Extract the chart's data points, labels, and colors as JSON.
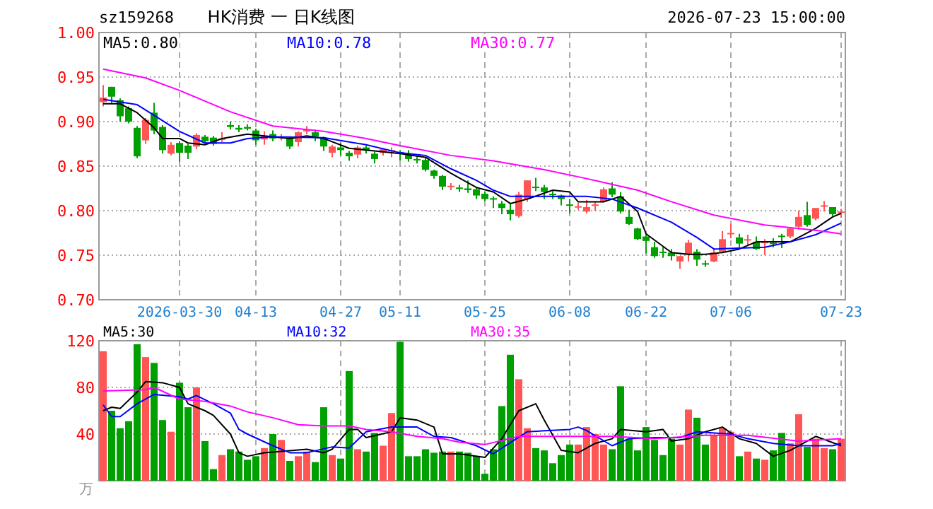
{
  "chart_data": [
    {
      "type": "candlestick",
      "title": "HK消费 一 日K线图",
      "subtitle": "sz159268",
      "annotations": [
        "2026-07-23 15:00:00"
      ],
      "categories": [
        null,
        null,
        null,
        null,
        null,
        null,
        null,
        null,
        null,
        "2026-03-30",
        null,
        null,
        null,
        null,
        null,
        null,
        null,
        null,
        "04-13",
        null,
        null,
        null,
        null,
        null,
        null,
        null,
        null,
        null,
        "04-27",
        null,
        null,
        null,
        null,
        null,
        null,
        "05-11",
        null,
        null,
        null,
        null,
        null,
        null,
        null,
        null,
        null,
        "05-25",
        null,
        null,
        null,
        null,
        null,
        null,
        null,
        null,
        null,
        "06-08",
        null,
        null,
        null,
        null,
        null,
        null,
        null,
        null,
        "06-22",
        null,
        null,
        null,
        null,
        null,
        null,
        null,
        null,
        null,
        "07-06",
        null,
        null,
        null,
        null,
        null,
        null,
        null,
        null,
        null,
        null,
        null,
        null,
        "07-23"
      ],
      "ohlc": [
        [
          0.922,
          0.941,
          0.917,
          0.927
        ],
        [
          0.939,
          0.939,
          0.92,
          0.928
        ],
        [
          0.924,
          0.926,
          0.9,
          0.906
        ],
        [
          0.915,
          0.917,
          0.898,
          0.9
        ],
        [
          0.893,
          0.895,
          0.859,
          0.861
        ],
        [
          0.879,
          0.904,
          0.875,
          0.902
        ],
        [
          0.91,
          0.921,
          0.886,
          0.89
        ],
        [
          0.894,
          0.896,
          0.864,
          0.868
        ],
        [
          0.864,
          0.877,
          0.862,
          0.874
        ],
        [
          0.876,
          0.878,
          0.855,
          0.865
        ],
        [
          0.873,
          0.875,
          0.858,
          0.865
        ],
        [
          0.872,
          0.887,
          0.869,
          0.885
        ],
        [
          0.883,
          0.885,
          0.876,
          0.878
        ],
        [
          0.882,
          0.884,
          0.873,
          0.875
        ],
        [
          0.88,
          0.888,
          0.877,
          0.881
        ],
        [
          0.896,
          0.9,
          0.891,
          0.894
        ],
        [
          0.893,
          0.896,
          0.888,
          0.891
        ],
        [
          0.894,
          0.897,
          0.89,
          0.892
        ],
        [
          0.89,
          0.892,
          0.874,
          0.879
        ],
        [
          0.88,
          0.889,
          0.874,
          0.884
        ],
        [
          0.886,
          0.89,
          0.878,
          0.881
        ],
        [
          0.882,
          0.886,
          0.879,
          0.883
        ],
        [
          0.881,
          0.883,
          0.869,
          0.872
        ],
        [
          0.877,
          0.889,
          0.872,
          0.888
        ],
        [
          0.889,
          0.895,
          0.886,
          0.891
        ],
        [
          0.888,
          0.891,
          0.878,
          0.883
        ],
        [
          0.881,
          0.883,
          0.867,
          0.872
        ],
        [
          0.865,
          0.874,
          0.86,
          0.872
        ],
        [
          0.871,
          0.876,
          0.862,
          0.868
        ],
        [
          0.865,
          0.867,
          0.856,
          0.861
        ],
        [
          0.863,
          0.873,
          0.859,
          0.871
        ],
        [
          0.871,
          0.873,
          0.864,
          0.868
        ],
        [
          0.864,
          0.866,
          0.853,
          0.858
        ],
        [
          0.865,
          0.87,
          0.862,
          0.869
        ],
        [
          0.867,
          0.871,
          0.86,
          0.868
        ],
        [
          0.866,
          0.868,
          0.856,
          0.865
        ],
        [
          0.864,
          0.868,
          0.855,
          0.858
        ],
        [
          0.858,
          0.862,
          0.853,
          0.857
        ],
        [
          0.857,
          0.86,
          0.844,
          0.846
        ],
        [
          0.845,
          0.846,
          0.836,
          0.839
        ],
        [
          0.839,
          0.84,
          0.823,
          0.827
        ],
        [
          0.827,
          0.831,
          0.823,
          0.828
        ],
        [
          0.826,
          0.829,
          0.821,
          0.825
        ],
        [
          0.825,
          0.834,
          0.82,
          0.823
        ],
        [
          0.824,
          0.826,
          0.813,
          0.817
        ],
        [
          0.819,
          0.821,
          0.811,
          0.813
        ],
        [
          0.814,
          0.816,
          0.803,
          0.813
        ],
        [
          0.808,
          0.811,
          0.796,
          0.803
        ],
        [
          0.801,
          0.808,
          0.789,
          0.796
        ],
        [
          0.794,
          0.821,
          0.792,
          0.818
        ],
        [
          0.813,
          0.834,
          0.81,
          0.834
        ],
        [
          0.827,
          0.837,
          0.822,
          0.826
        ],
        [
          0.826,
          0.829,
          0.813,
          0.821
        ],
        [
          0.819,
          0.822,
          0.813,
          0.818
        ],
        [
          0.817,
          0.818,
          0.806,
          0.813
        ],
        [
          0.807,
          0.813,
          0.797,
          0.806
        ],
        [
          0.804,
          0.809,
          0.801,
          0.805
        ],
        [
          0.799,
          0.812,
          0.797,
          0.804
        ],
        [
          0.806,
          0.81,
          0.8,
          0.807
        ],
        [
          0.81,
          0.826,
          0.809,
          0.824
        ],
        [
          0.825,
          0.832,
          0.815,
          0.818
        ],
        [
          0.816,
          0.821,
          0.797,
          0.799
        ],
        [
          0.793,
          0.801,
          0.784,
          0.785
        ],
        [
          0.78,
          0.781,
          0.767,
          0.768
        ],
        [
          0.771,
          0.774,
          0.752,
          0.766
        ],
        [
          0.759,
          0.765,
          0.747,
          0.749
        ],
        [
          0.754,
          0.759,
          0.747,
          0.753
        ],
        [
          0.753,
          0.757,
          0.744,
          0.749
        ],
        [
          0.743,
          0.749,
          0.735,
          0.749
        ],
        [
          0.751,
          0.767,
          0.743,
          0.764
        ],
        [
          0.754,
          0.757,
          0.738,
          0.745
        ],
        [
          0.741,
          0.744,
          0.737,
          0.74
        ],
        [
          0.743,
          0.757,
          0.742,
          0.753
        ],
        [
          0.754,
          0.777,
          0.753,
          0.768
        ],
        [
          0.774,
          0.785,
          0.769,
          0.775
        ],
        [
          0.77,
          0.774,
          0.759,
          0.763
        ],
        [
          0.767,
          0.773,
          0.761,
          0.768
        ],
        [
          0.765,
          0.771,
          0.756,
          0.757
        ],
        [
          0.764,
          0.768,
          0.75,
          0.765
        ],
        [
          0.764,
          0.769,
          0.759,
          0.763
        ],
        [
          0.772,
          0.774,
          0.758,
          0.771
        ],
        [
          0.771,
          0.781,
          0.769,
          0.78
        ],
        [
          0.782,
          0.8,
          0.779,
          0.793
        ],
        [
          0.795,
          0.81,
          0.782,
          0.784
        ],
        [
          0.791,
          0.803,
          0.789,
          0.803
        ],
        [
          0.805,
          0.811,
          0.799,
          0.806
        ],
        [
          0.804,
          0.804,
          0.794,
          0.796
        ],
        [
          0.798,
          0.802,
          0.792,
          0.799
        ]
      ],
      "colors": [
        "#ff5555",
        "#00a000",
        "#00a000",
        "#00a000",
        "#00a000",
        "#ff5555",
        "#00a000",
        "#00a000",
        "#ff5555",
        "#00a000",
        "#00a000",
        "#ff5555",
        "#00a000",
        "#00a000",
        "#ff5555",
        "#00a000",
        "#00a000",
        "#00a000",
        "#00a000",
        "#ff5555",
        "#00a000",
        "#ff5555",
        "#00a000",
        "#ff5555",
        "#ff5555",
        "#00a000",
        "#00a000",
        "#ff5555",
        "#00a000",
        "#00a000",
        "#ff5555",
        "#00a000",
        "#00a000",
        "#ff5555",
        "#ff5555",
        "#00a000",
        "#00a000",
        "#00a000",
        "#00a000",
        "#00a000",
        "#00a000",
        "#ff5555",
        "#00a000",
        "#00a000",
        "#00a000",
        "#00a000",
        "#00a000",
        "#00a000",
        "#00a000",
        "#ff5555",
        "#ff5555",
        "#00a000",
        "#00a000",
        "#00a000",
        "#00a000",
        "#00a000",
        "#ff5555",
        "#ff5555",
        "#ff5555",
        "#ff5555",
        "#00a000",
        "#00a000",
        "#00a000",
        "#00a000",
        "#00a000",
        "#00a000",
        "#00a000",
        "#00a000",
        "#ff5555",
        "#ff5555",
        "#00a000",
        "#00a000",
        "#ff5555",
        "#ff5555",
        "#ff5555",
        "#00a000",
        "#ff5555",
        "#00a000",
        "#ff5555",
        "#00a000",
        "#00a000",
        "#ff5555",
        "#ff5555",
        "#00a000",
        "#ff5555",
        "#ff5555",
        "#00a000",
        "#ff5555"
      ],
      "series": [
        {
          "name": "MA5:0.80",
          "type": "line",
          "color": "#000000",
          "values": [
            0.92,
            null,
            0.92,
            null,
            0.91,
            null,
            0.893,
            0.881,
            null,
            0.881,
            0.876,
            null,
            0.874,
            null,
            0.881,
            null,
            null,
            0.886,
            null,
            null,
            0.883,
            null,
            0.881,
            null,
            0.884,
            null,
            0.881,
            null,
            null,
            0.87,
            null,
            0.868,
            null,
            null,
            null,
            0.864,
            null,
            null,
            0.86,
            null,
            null,
            0.842,
            null,
            null,
            0.826,
            null,
            0.821,
            null,
            0.808,
            null,
            0.813,
            null,
            null,
            0.823,
            null,
            0.821,
            0.81,
            null,
            null,
            0.81,
            null,
            0.816,
            null,
            0.799,
            0.774,
            null,
            null,
            0.753,
            null,
            0.751,
            null,
            0.751,
            null,
            0.753,
            null,
            0.757,
            null,
            0.765,
            null,
            null,
            null,
            0.765,
            null,
            null,
            0.78,
            null,
            0.793,
            0.797
          ]
        },
        {
          "name": "MA10:0.78",
          "type": "line",
          "color": "#0000ff",
          "values": [
            0.925,
            null,
            null,
            null,
            0.919,
            null,
            0.907,
            null,
            null,
            0.889,
            null,
            null,
            0.876,
            null,
            null,
            0.876,
            null,
            0.881,
            null,
            null,
            0.883,
            null,
            null,
            null,
            null,
            null,
            0.882,
            null,
            null,
            null,
            null,
            0.874,
            null,
            null,
            null,
            0.865,
            null,
            null,
            0.862,
            null,
            null,
            0.847,
            null,
            null,
            0.834,
            null,
            0.823,
            null,
            0.816,
            null,
            null,
            null,
            0.816,
            null,
            null,
            null,
            null,
            0.816,
            null,
            null,
            0.813,
            null,
            null,
            0.803,
            null,
            null,
            null,
            0.787,
            null,
            null,
            0.77,
            null,
            0.757,
            null,
            null,
            null,
            null,
            null,
            0.759,
            null,
            null,
            0.765,
            null,
            null,
            0.773,
            null,
            null,
            0.786
          ]
        },
        {
          "name": "MA30:0.77",
          "type": "line",
          "color": "#ff00ff",
          "values": [
            0.959,
            null,
            null,
            null,
            null,
            0.949,
            null,
            null,
            null,
            0.935,
            null,
            null,
            null,
            null,
            null,
            0.911,
            null,
            null,
            null,
            null,
            0.895,
            null,
            null,
            null,
            null,
            null,
            0.889,
            null,
            null,
            null,
            null,
            0.881,
            null,
            null,
            null,
            0.873,
            null,
            null,
            null,
            null,
            null,
            0.862,
            null,
            null,
            null,
            null,
            0.856,
            null,
            null,
            null,
            null,
            null,
            0.846,
            null,
            null,
            null,
            null,
            0.836,
            null,
            null,
            null,
            null,
            null,
            0.823,
            null,
            null,
            null,
            0.81,
            null,
            null,
            null,
            null,
            0.795,
            null,
            null,
            null,
            null,
            null,
            0.784,
            null,
            null,
            null,
            null,
            null,
            0.778,
            null,
            null,
            0.774
          ]
        }
      ],
      "ylim": [
        0.7,
        1.0
      ],
      "yticks": [
        {
          "value": 0.7,
          "label": "0.70"
        },
        {
          "value": 0.75,
          "label": "0.75"
        },
        {
          "value": 0.8,
          "label": "0.80"
        },
        {
          "value": 0.85,
          "label": "0.85"
        },
        {
          "value": 0.9,
          "label": "0.90"
        },
        {
          "value": 0.95,
          "label": "0.95"
        },
        {
          "value": 1.0,
          "label": "1.00"
        }
      ],
      "grid": true,
      "legend": "top left"
    },
    {
      "type": "bar",
      "ylabel": "万",
      "tick_labels": "y",
      "categories": [
        null,
        null,
        null,
        null,
        null,
        null,
        null,
        null,
        null,
        null,
        null,
        null,
        null,
        null,
        null,
        null,
        null,
        null,
        null,
        null,
        null,
        null,
        null,
        null,
        null,
        null,
        null,
        null,
        null,
        null,
        null,
        null,
        null,
        null,
        null,
        null,
        null,
        null,
        null,
        null,
        null,
        null,
        null,
        null,
        null,
        null,
        null,
        null,
        null,
        null,
        null,
        null,
        null,
        null,
        null,
        null,
        null,
        null,
        null,
        null,
        null,
        null,
        null,
        null,
        null,
        null,
        null,
        null,
        null,
        null,
        null,
        null,
        null,
        null,
        null,
        null,
        null,
        null,
        null,
        null,
        null,
        null,
        null,
        null,
        null,
        null,
        null,
        null
      ],
      "values": [
        111,
        60,
        45,
        51,
        117,
        106,
        101,
        52,
        42,
        84,
        63,
        80,
        34,
        10,
        22,
        27,
        25,
        18,
        21,
        28,
        40,
        35,
        17,
        21,
        25,
        16,
        63,
        22,
        19,
        94,
        27,
        25,
        41,
        30,
        58,
        119,
        21,
        21,
        27,
        24,
        25,
        25,
        25,
        24,
        21,
        6,
        27,
        64,
        108,
        87,
        45,
        28,
        26,
        15,
        22,
        31,
        31,
        46,
        40,
        31,
        27,
        81,
        36,
        26,
        46,
        35,
        22,
        36,
        31,
        61,
        54,
        31,
        39,
        45,
        42,
        21,
        25,
        19,
        18,
        26,
        41,
        32,
        57,
        29,
        36,
        28,
        27,
        36
      ],
      "colors": [
        "#ff5555",
        "#00a000",
        "#00a000",
        "#00a000",
        "#00a000",
        "#ff5555",
        "#00a000",
        "#00a000",
        "#ff5555",
        "#00a000",
        "#00a000",
        "#ff5555",
        "#00a000",
        "#00a000",
        "#ff5555",
        "#00a000",
        "#00a000",
        "#00a000",
        "#00a000",
        "#ff5555",
        "#00a000",
        "#ff5555",
        "#00a000",
        "#ff5555",
        "#ff5555",
        "#00a000",
        "#00a000",
        "#ff5555",
        "#00a000",
        "#00a000",
        "#ff5555",
        "#00a000",
        "#00a000",
        "#ff5555",
        "#ff5555",
        "#00a000",
        "#00a000",
        "#00a000",
        "#00a000",
        "#00a000",
        "#00a000",
        "#ff5555",
        "#00a000",
        "#00a000",
        "#00a000",
        "#00a000",
        "#00a000",
        "#00a000",
        "#00a000",
        "#ff5555",
        "#ff5555",
        "#00a000",
        "#00a000",
        "#00a000",
        "#00a000",
        "#00a000",
        "#ff5555",
        "#ff5555",
        "#ff5555",
        "#ff5555",
        "#00a000",
        "#00a000",
        "#00a000",
        "#00a000",
        "#00a000",
        "#00a000",
        "#00a000",
        "#00a000",
        "#ff5555",
        "#ff5555",
        "#00a000",
        "#00a000",
        "#ff5555",
        "#ff5555",
        "#ff5555",
        "#00a000",
        "#ff5555",
        "#00a000",
        "#ff5555",
        "#00a000",
        "#00a000",
        "#ff5555",
        "#ff5555",
        "#00a000",
        "#ff5555",
        "#ff5555",
        "#00a000",
        "#ff5555"
      ],
      "series": [
        {
          "name": "MA5:30",
          "type": "line",
          "color": "#000000",
          "values": [
            60,
            63,
            62,
            null,
            76,
            85,
            null,
            84,
            null,
            80,
            66,
            null,
            60,
            56,
            null,
            40,
            24,
            21,
            null,
            24,
            null,
            null,
            null,
            null,
            27,
            null,
            24,
            27,
            null,
            44,
            44,
            37,
            null,
            null,
            42,
            54,
            null,
            52,
            null,
            46,
            23,
            null,
            23,
            null,
            null,
            20,
            null,
            36,
            null,
            60,
            null,
            66,
            52,
            null,
            26,
            null,
            24,
            null,
            32,
            null,
            36,
            44,
            null,
            null,
            42,
            null,
            44,
            34,
            null,
            36,
            null,
            42,
            null,
            46,
            null,
            36,
            null,
            32,
            null,
            21,
            null,
            26,
            null,
            null,
            38,
            null,
            null,
            30
          ]
        },
        {
          "name": "MA10:32",
          "type": "line",
          "color": "#0000ff",
          "values": [
            65,
            55,
            55,
            null,
            66,
            null,
            74,
            null,
            null,
            72,
            70,
            73,
            null,
            66,
            null,
            58,
            44,
            40,
            null,
            null,
            30,
            null,
            24,
            null,
            24,
            null,
            null,
            29,
            null,
            28,
            null,
            42,
            null,
            null,
            46,
            null,
            null,
            46,
            null,
            38,
            null,
            37,
            null,
            null,
            30,
            null,
            23,
            28,
            null,
            null,
            42,
            null,
            null,
            null,
            null,
            44,
            46,
            43,
            null,
            null,
            30,
            null,
            36,
            null,
            null,
            37,
            null,
            null,
            37,
            null,
            42,
            null,
            null,
            null,
            40,
            null,
            36,
            null,
            null,
            32,
            null,
            null,
            30,
            null,
            null,
            null,
            30,
            32
          ]
        },
        {
          "name": "MA30:35",
          "type": "line",
          "color": "#ff00ff",
          "values": [
            77,
            null,
            null,
            null,
            null,
            78,
            80,
            null,
            null,
            70,
            null,
            null,
            68,
            null,
            null,
            64,
            null,
            59,
            null,
            null,
            54,
            null,
            null,
            48,
            null,
            null,
            47,
            null,
            null,
            47,
            null,
            44,
            null,
            null,
            42,
            null,
            null,
            38,
            null,
            null,
            36,
            null,
            33,
            null,
            null,
            31,
            null,
            null,
            null,
            38,
            null,
            null,
            null,
            null,
            38,
            null,
            null,
            null,
            null,
            null,
            38,
            null,
            null,
            null,
            null,
            36,
            null,
            null,
            null,
            null,
            null,
            39,
            null,
            null,
            null,
            null,
            39,
            null,
            null,
            null,
            null,
            null,
            34,
            null,
            null,
            null,
            null,
            36
          ]
        }
      ],
      "ylim": [
        0,
        120
      ],
      "yticks": [
        40,
        80,
        120
      ],
      "grid": true,
      "legend": "top left"
    }
  ]
}
